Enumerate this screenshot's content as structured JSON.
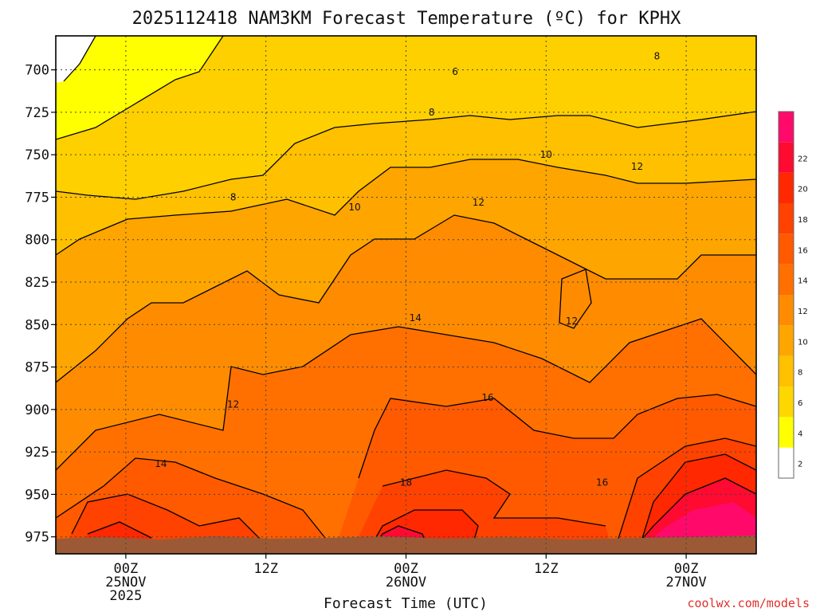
{
  "chart_data": {
    "type": "heatmap",
    "title": "2025112418 NAM3KM Forecast Temperature (ºC) for KPHX",
    "xlabel": "Forecast Time (UTC)",
    "ylabel": "",
    "y_ticks": [
      "700",
      "725",
      "750",
      "775",
      "800",
      "825",
      "850",
      "875",
      "900",
      "925",
      "950",
      "975"
    ],
    "x_ticks": [
      {
        "hour": 6,
        "lines": [
          "00Z",
          "25NOV",
          "2025"
        ]
      },
      {
        "hour": 18,
        "lines": [
          "12Z"
        ]
      },
      {
        "hour": 30,
        "lines": [
          "00Z",
          "26NOV"
        ]
      },
      {
        "hour": 42,
        "lines": [
          "12Z"
        ]
      },
      {
        "hour": 54,
        "lines": [
          "00Z",
          "27NOV"
        ]
      }
    ],
    "x_range_hours": [
      0,
      60
    ],
    "y_range_hpa": [
      680,
      985
    ],
    "colorbar_ticks": [
      "2",
      "4",
      "6",
      "8",
      "10",
      "12",
      "14",
      "16",
      "18",
      "20",
      "22"
    ],
    "colorbar_colors": [
      "#ffffff",
      "#ffff00",
      "#ffd700",
      "#ffc000",
      "#ffa500",
      "#ff8c00",
      "#ff7000",
      "#ff5a00",
      "#ff4200",
      "#ff2800",
      "#ff0a30",
      "#ff0a6a"
    ],
    "contour_labels": [
      {
        "text": "6",
        "hour": 34.2,
        "hpa": 701
      },
      {
        "text": "8",
        "hour": 51.5,
        "hpa": 692
      },
      {
        "text": "8",
        "hour": 32.2,
        "hpa": 725
      },
      {
        "text": "8",
        "hour": 15.2,
        "hpa": 775
      },
      {
        "text": "10",
        "hour": 42.0,
        "hpa": 750
      },
      {
        "text": "10",
        "hour": 25.6,
        "hpa": 781
      },
      {
        "text": "12",
        "hour": 49.8,
        "hpa": 757
      },
      {
        "text": "12",
        "hour": 36.2,
        "hpa": 778
      },
      {
        "text": "12",
        "hour": 44.2,
        "hpa": 848
      },
      {
        "text": "12",
        "hour": 15.2,
        "hpa": 897
      },
      {
        "text": "14",
        "hour": 30.8,
        "hpa": 846
      },
      {
        "text": "14",
        "hour": 9.0,
        "hpa": 932
      },
      {
        "text": "16",
        "hour": 37.0,
        "hpa": 893
      },
      {
        "text": "16",
        "hour": 46.8,
        "hpa": 943
      },
      {
        "text": "18",
        "hour": 30.0,
        "hpa": 943
      }
    ],
    "colors": {
      "terrain": "#9b5a35",
      "background": "#ffffff"
    }
  },
  "credit": "coolwx.com/models"
}
